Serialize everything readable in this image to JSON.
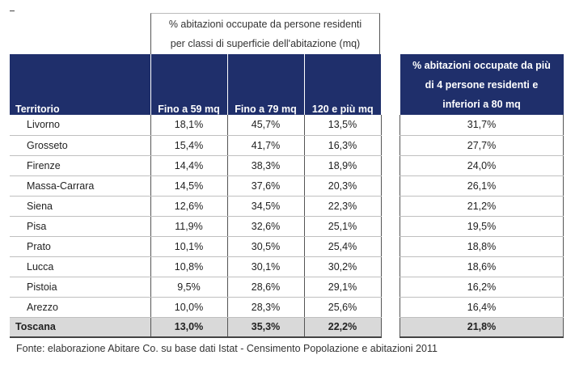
{
  "table": {
    "group_header": {
      "line1": "% abitazioni occupate da persone residenti",
      "line2": "per classi di superficie dell'abitazione (mq)"
    },
    "columns": {
      "territorio": "Territorio",
      "fino59": "Fino a 59 mq",
      "fino79": "Fino a 79 mq",
      "over120": "120 e più mq"
    },
    "side_header": "% abitazioni occupate da più di 4 persone residenti e inferiori a 80 mq",
    "rows": [
      {
        "territorio": "Livorno",
        "fino59": "18,1%",
        "fino79": "45,7%",
        "over120": "13,5%",
        "side": "31,7%"
      },
      {
        "territorio": "Grosseto",
        "fino59": "15,4%",
        "fino79": "41,7%",
        "over120": "16,3%",
        "side": "27,7%"
      },
      {
        "territorio": "Firenze",
        "fino59": "14,4%",
        "fino79": "38,3%",
        "over120": "18,9%",
        "side": "24,0%"
      },
      {
        "territorio": "Massa-Carrara",
        "fino59": "14,5%",
        "fino79": "37,6%",
        "over120": "20,3%",
        "side": "26,1%"
      },
      {
        "territorio": "Siena",
        "fino59": "12,6%",
        "fino79": "34,5%",
        "over120": "22,3%",
        "side": "21,2%"
      },
      {
        "territorio": "Pisa",
        "fino59": "11,9%",
        "fino79": "32,6%",
        "over120": "25,1%",
        "side": "19,5%"
      },
      {
        "territorio": "Prato",
        "fino59": "10,1%",
        "fino79": "30,5%",
        "over120": "25,4%",
        "side": "18,8%"
      },
      {
        "territorio": "Lucca",
        "fino59": "10,8%",
        "fino79": "30,1%",
        "over120": "30,2%",
        "side": "18,6%"
      },
      {
        "territorio": "Pistoia",
        "fino59": "9,5%",
        "fino79": "28,6%",
        "over120": "29,1%",
        "side": "16,2%"
      },
      {
        "territorio": "Arezzo",
        "fino59": "10,0%",
        "fino79": "28,3%",
        "over120": "25,6%",
        "side": "16,4%"
      }
    ],
    "total": {
      "territorio": "Toscana",
      "fino59": "13,0%",
      "fino79": "35,3%",
      "over120": "22,2%",
      "side": "21,8%"
    }
  },
  "source": "Fonte: elaborazione Abitare Co. su base dati Istat - Censimento Popolazione e abitazioni 2011",
  "colors": {
    "header_bg": "#1f2f6b",
    "header_text": "#ffffff",
    "total_bg": "#d9d9d9"
  }
}
